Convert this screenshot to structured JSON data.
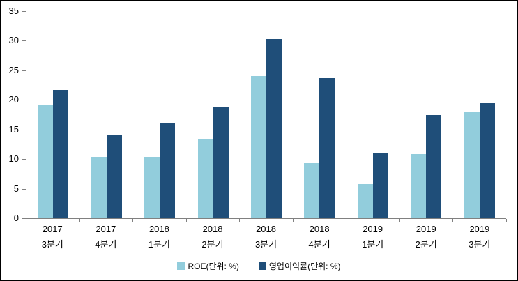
{
  "chart_data": {
    "type": "bar",
    "categories": [
      [
        "2017",
        "3분기"
      ],
      [
        "2017",
        "4분기"
      ],
      [
        "2018",
        "1분기"
      ],
      [
        "2018",
        "2분기"
      ],
      [
        "2018",
        "3분기"
      ],
      [
        "2018",
        "4분기"
      ],
      [
        "2019",
        "1분기"
      ],
      [
        "2019",
        "2분기"
      ],
      [
        "2019",
        "3분기"
      ]
    ],
    "series": [
      {
        "key": "roe",
        "name": "ROE(단위: %)",
        "color": "#92CDDC",
        "values": [
          19.2,
          10.4,
          10.4,
          13.4,
          24.0,
          9.3,
          5.8,
          10.9,
          18.0
        ]
      },
      {
        "key": "operating-margin",
        "name": "영업이익률(단위: %)",
        "color": "#1F4E79",
        "values": [
          21.7,
          14.2,
          16.0,
          18.9,
          30.3,
          23.7,
          11.1,
          17.4,
          19.5
        ]
      }
    ],
    "title": "",
    "xlabel": "",
    "ylabel": "",
    "ylim": [
      0,
      35
    ],
    "yticks": [
      0,
      5,
      10,
      15,
      20,
      25,
      30,
      35
    ],
    "grid": false,
    "legend_position": "bottom",
    "axis_color": "#808080",
    "text_color": "#000000",
    "background_color": "#FFFFFF",
    "border_color": "#000000"
  }
}
